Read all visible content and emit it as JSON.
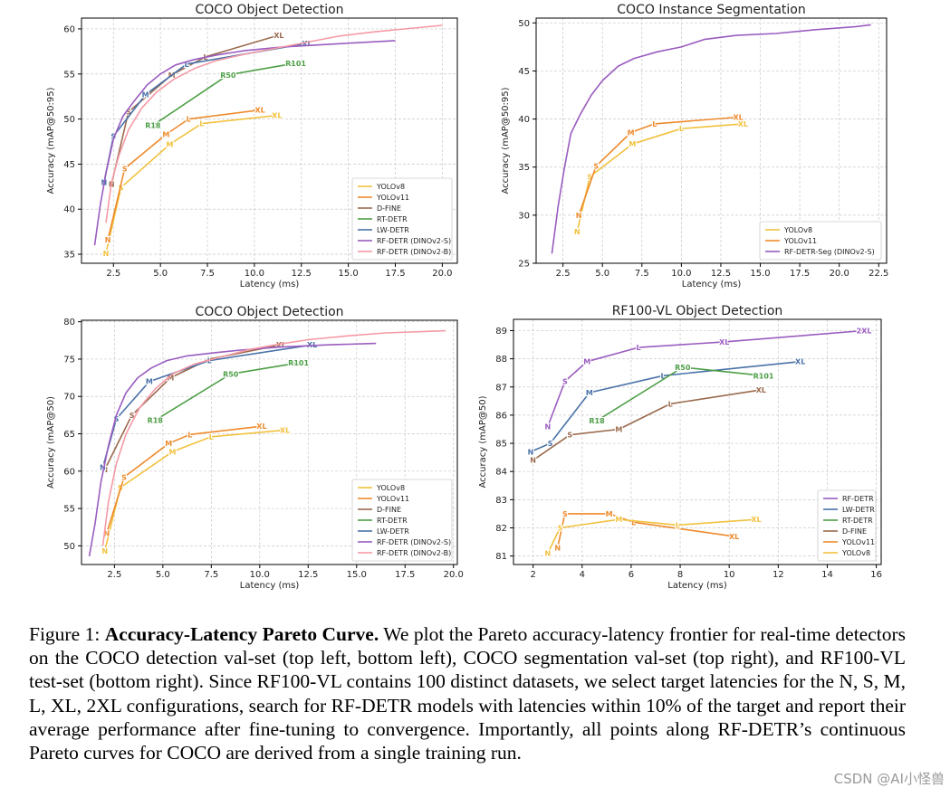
{
  "caption": {
    "label": "Figure 1:",
    "title": "Accuracy-Latency Pareto Curve.",
    "body": "We plot the Pareto accuracy-latency frontier for real-time detectors on the COCO detection val-set (top left, bottom left), COCO segmentation val-set (top right), and RF100-VL test-set (bottom right). Since RF100-VL contains 100 distinct datasets, we select target latencies for the N, S, M, L, XL, 2XL configurations, search for RF-DETR models with latencies within 10% of the target and report their average performance after fine-tuning to convergence. Importantly, all points along RF-DETR’s continuous Pareto curves for COCO are derived from a single training run."
  },
  "watermark": "CSDN @AI小怪兽",
  "colors": {
    "yolov8": "#f2c13e",
    "yolov11": "#ee8a2b",
    "dfine": "#9a6b4e",
    "rtdetr": "#4e9f47",
    "lwdetr": "#4a72a8",
    "rfdetr_s": "#9a5cc0",
    "rfdetr_b": "#f59aa6"
  },
  "chart_data": [
    {
      "type": "line",
      "title": "COCO Object Detection",
      "xlabel": "Latency (ms)",
      "ylabel": "Accuracy (mAP@50:95)",
      "xlim": [
        0.8,
        20.8
      ],
      "ylim": [
        34,
        61.2
      ],
      "xticks": [
        2.5,
        5.0,
        7.5,
        10.0,
        12.5,
        15.0,
        17.5,
        20.0
      ],
      "xtick_labels": [
        "2.5",
        "5.0",
        "7.5",
        "10.0",
        "12.5",
        "15.0",
        "17.5",
        "20.0"
      ],
      "yticks": [
        35,
        40,
        45,
        50,
        55,
        60
      ],
      "ytick_labels": [
        "35",
        "40",
        "45",
        "50",
        "55",
        "60"
      ],
      "grid": true,
      "legend_position": "bottom-right",
      "legend": [
        "YOLOv8",
        "YOLOv11",
        "D-FINE",
        "RT-DETR",
        "LW-DETR",
        "RF-DETR (DINOv2-S)",
        "RF-DETR (DINOv2-B)"
      ],
      "legend_colors": [
        "yolov8",
        "yolov11",
        "dfine",
        "rtdetr",
        "lwdetr",
        "rfdetr_s",
        "rfdetr_b"
      ],
      "series": [
        {
          "name": "YOLOv8",
          "color": "yolov8",
          "x": [
            2.1,
            2.9,
            5.5,
            7.2,
            11.2
          ],
          "y": [
            35.1,
            42.4,
            47.2,
            49.5,
            50.4
          ],
          "labels": [
            "N",
            "S",
            "M",
            "L",
            "XL"
          ]
        },
        {
          "name": "YOLOv11",
          "color": "yolov11",
          "x": [
            2.2,
            3.1,
            5.3,
            6.5,
            10.3
          ],
          "y": [
            36.6,
            44.5,
            48.3,
            50.0,
            51.0
          ],
          "labels": [
            "N",
            "S",
            "M",
            "L",
            "XL"
          ]
        },
        {
          "name": "D-FINE",
          "color": "dfine",
          "x": [
            2.4,
            3.3,
            5.6,
            7.4,
            11.3
          ],
          "y": [
            42.8,
            50.8,
            54.9,
            56.9,
            59.3
          ],
          "labels": [
            "N",
            "S",
            "M",
            "L",
            "XL"
          ]
        },
        {
          "name": "RT-DETR",
          "color": "rtdetr",
          "x": [
            4.6,
            8.6,
            12.2
          ],
          "y": [
            49.3,
            54.9,
            56.2
          ],
          "labels": [
            "R18",
            "R50",
            "R101"
          ]
        },
        {
          "name": "LW-DETR",
          "color": "lwdetr",
          "x": [
            2.0,
            2.5,
            4.2,
            6.4,
            12.8
          ],
          "y": [
            43.0,
            48.1,
            52.7,
            56.1,
            58.4
          ],
          "labels": [
            "N",
            "S",
            "M",
            "L",
            "XL"
          ]
        },
        {
          "name": "RF-DETR (DINOv2-S)",
          "color": "rfdetr_s",
          "x": [
            1.5,
            1.8,
            2.1,
            2.5,
            3.0,
            3.6,
            4.3,
            5.0,
            5.8,
            6.8,
            8.0,
            9.5,
            11.5,
            14.0,
            17.5
          ],
          "y": [
            36.0,
            40.5,
            44.0,
            47.8,
            50.3,
            52.0,
            53.8,
            55.0,
            56.0,
            56.6,
            57.1,
            57.6,
            58.0,
            58.3,
            58.7
          ],
          "labels": []
        },
        {
          "name": "RF-DETR (DINOv2-B)",
          "color": "rfdetr_b",
          "x": [
            2.1,
            2.4,
            2.8,
            3.3,
            4.0,
            4.8,
            5.7,
            6.8,
            8.0,
            9.5,
            11.0,
            12.5,
            14.5,
            16.5,
            18.5,
            20.0
          ],
          "y": [
            38.5,
            43.0,
            46.0,
            48.8,
            51.2,
            53.0,
            54.4,
            55.6,
            56.5,
            57.2,
            57.8,
            58.4,
            59.2,
            59.7,
            60.1,
            60.4
          ],
          "labels": []
        }
      ]
    },
    {
      "type": "line",
      "title": "COCO Instance Segmentation",
      "xlabel": "Latency (ms)",
      "ylabel": "Accuracy (mAP@50:95)",
      "xlim": [
        0.8,
        23.0
      ],
      "ylim": [
        25,
        50.5
      ],
      "xticks": [
        2.5,
        5.0,
        7.5,
        10.0,
        12.5,
        15.0,
        17.5,
        20.0,
        22.5
      ],
      "xtick_labels": [
        "2.5",
        "5.0",
        "7.5",
        "10.0",
        "12.5",
        "15.0",
        "17.5",
        "20.0",
        "22.5"
      ],
      "yticks": [
        25,
        30,
        35,
        40,
        45,
        50
      ],
      "ytick_labels": [
        "25",
        "30",
        "35",
        "40",
        "45",
        "50"
      ],
      "grid": true,
      "legend_position": "bottom-right",
      "legend": [
        "YOLOv8",
        "YOLOv11",
        "RF-DETR-Seg (DINOv2-S)"
      ],
      "legend_colors": [
        "yolov8",
        "yolov11",
        "rfdetr_s"
      ],
      "series": [
        {
          "name": "YOLOv8",
          "color": "yolov8",
          "x": [
            3.4,
            4.2,
            6.9,
            10.0,
            13.9
          ],
          "y": [
            28.3,
            34.0,
            37.4,
            39.0,
            39.5
          ],
          "labels": [
            "N",
            "S",
            "M",
            "L",
            "XL"
          ]
        },
        {
          "name": "YOLOv11",
          "color": "yolov11",
          "x": [
            3.5,
            4.6,
            6.8,
            8.3,
            13.6
          ],
          "y": [
            30.0,
            35.1,
            38.6,
            39.5,
            40.2
          ],
          "labels": [
            "N",
            "S",
            "M",
            "L",
            "XL"
          ]
        },
        {
          "name": "RF-DETR-Seg (DINOv2-S)",
          "color": "rfdetr_s",
          "x": [
            1.8,
            2.2,
            2.6,
            3.0,
            3.6,
            4.3,
            5.0,
            6.0,
            7.0,
            8.5,
            10.0,
            11.5,
            13.5,
            16.0,
            18.5,
            21.0,
            22.0
          ],
          "y": [
            26.0,
            31.0,
            35.0,
            38.5,
            40.5,
            42.5,
            44.0,
            45.5,
            46.3,
            47.0,
            47.5,
            48.3,
            48.7,
            48.9,
            49.3,
            49.6,
            49.8
          ],
          "labels": []
        }
      ]
    },
    {
      "type": "line",
      "title": "COCO Object Detection",
      "xlabel": "Latency (ms)",
      "ylabel": "Accuracy (mAP@50)",
      "xlim": [
        0.8,
        20.2
      ],
      "ylim": [
        47.5,
        80.2
      ],
      "xticks": [
        2.5,
        5.0,
        7.5,
        10.0,
        12.5,
        15.0,
        17.5,
        20.0
      ],
      "xtick_labels": [
        "2.5",
        "5.0",
        "7.5",
        "10.0",
        "12.5",
        "15.0",
        "17.5",
        "20.0"
      ],
      "yticks": [
        50,
        55,
        60,
        65,
        70,
        75,
        80
      ],
      "ytick_labels": [
        "50",
        "55",
        "60",
        "65",
        "70",
        "75",
        "80"
      ],
      "grid": true,
      "legend_position": "bottom-right",
      "legend": [
        "YOLOv8",
        "YOLOv11",
        "D-FINE",
        "RT-DETR",
        "LW-DETR",
        "RF-DETR (DINOv2-S)",
        "RF-DETR (DINOv2-B)"
      ],
      "legend_colors": [
        "yolov8",
        "yolov11",
        "dfine",
        "rtdetr",
        "lwdetr",
        "rfdetr_s",
        "rfdetr_b"
      ],
      "series": [
        {
          "name": "YOLOv8",
          "color": "yolov8",
          "x": [
            2.0,
            2.8,
            5.5,
            7.5,
            11.3
          ],
          "y": [
            49.3,
            57.8,
            62.6,
            64.6,
            65.5
          ],
          "labels": [
            "N",
            "S",
            "M",
            "L",
            "XL"
          ]
        },
        {
          "name": "YOLOv11",
          "color": "yolov11",
          "x": [
            2.1,
            3.0,
            5.3,
            6.4,
            10.1
          ],
          "y": [
            51.7,
            59.2,
            63.7,
            64.9,
            66.0
          ],
          "labels": [
            "N",
            "S",
            "M",
            "L",
            "XL"
          ]
        },
        {
          "name": "D-FINE",
          "color": "dfine",
          "x": [
            2.0,
            3.4,
            5.4,
            7.4,
            11.1
          ],
          "y": [
            60.2,
            67.5,
            72.5,
            75.0,
            76.9
          ],
          "labels": [
            "N",
            "S",
            "M",
            "L",
            "XL"
          ]
        },
        {
          "name": "RT-DETR",
          "color": "rtdetr",
          "x": [
            4.6,
            8.5,
            12.0
          ],
          "y": [
            66.8,
            73.0,
            74.5
          ],
          "labels": [
            "R18",
            "R50",
            "R101"
          ]
        },
        {
          "name": "LW-DETR",
          "color": "lwdetr",
          "x": [
            1.9,
            2.6,
            4.3,
            7.4,
            12.7
          ],
          "y": [
            60.5,
            67.0,
            72.0,
            74.8,
            76.9
          ],
          "labels": [
            "N",
            "S",
            "M",
            "L",
            "XL"
          ]
        },
        {
          "name": "RF-DETR (DINOv2-S)",
          "color": "rfdetr_s",
          "x": [
            1.2,
            1.5,
            1.8,
            2.2,
            2.6,
            3.1,
            3.7,
            4.4,
            5.2,
            6.2,
            7.5,
            9.0,
            11.0,
            13.5,
            16.0
          ],
          "y": [
            48.6,
            53.0,
            58.5,
            63.5,
            67.5,
            70.5,
            72.5,
            73.8,
            74.8,
            75.4,
            75.8,
            76.2,
            76.6,
            76.9,
            77.1
          ],
          "labels": []
        },
        {
          "name": "RF-DETR (DINOv2-B)",
          "color": "rfdetr_b",
          "x": [
            1.9,
            2.2,
            2.6,
            3.1,
            3.8,
            4.6,
            5.5,
            6.6,
            8.0,
            9.5,
            11.0,
            12.5,
            14.5,
            16.5,
            18.5,
            19.6
          ],
          "y": [
            50.0,
            56.0,
            61.0,
            65.0,
            68.5,
            71.0,
            73.0,
            74.3,
            75.3,
            76.3,
            77.0,
            77.6,
            78.1,
            78.5,
            78.7,
            78.8
          ],
          "labels": []
        }
      ]
    },
    {
      "type": "line",
      "title": "RF100-VL Object Detection",
      "xlabel": "Latency (ms)",
      "ylabel": "Accuracy (mAP@50)",
      "xlim": [
        1.2,
        16.2
      ],
      "ylim": [
        80.7,
        89.4
      ],
      "xticks": [
        2,
        4,
        6,
        8,
        10,
        12,
        14,
        16
      ],
      "xtick_labels": [
        "2",
        "4",
        "6",
        "8",
        "10",
        "12",
        "14",
        "16"
      ],
      "yticks": [
        81,
        82,
        83,
        84,
        85,
        86,
        87,
        88,
        89
      ],
      "ytick_labels": [
        "81",
        "82",
        "83",
        "84",
        "85",
        "86",
        "87",
        "88",
        "89"
      ],
      "grid": true,
      "legend_position": "bottom-right",
      "legend": [
        "RF-DETR",
        "LW-DETR",
        "RT-DETR",
        "D-FINE",
        "YOLOv11",
        "YOLOv8"
      ],
      "legend_colors": [
        "rfdetr_s",
        "lwdetr",
        "rtdetr",
        "dfine",
        "yolov11",
        "yolov8"
      ],
      "series": [
        {
          "name": "RF-DETR",
          "color": "rfdetr_s",
          "x": [
            2.6,
            3.3,
            4.2,
            6.3,
            9.8,
            15.5
          ],
          "y": [
            85.6,
            87.2,
            87.9,
            88.4,
            88.6,
            89.0
          ],
          "labels": [
            "N",
            "S",
            "M",
            "L",
            "XL",
            "2XL"
          ]
        },
        {
          "name": "LW-DETR",
          "color": "lwdetr",
          "x": [
            1.9,
            2.7,
            4.3,
            7.3,
            12.9
          ],
          "y": [
            84.7,
            85.0,
            86.8,
            87.4,
            87.9
          ],
          "labels": [
            "N",
            "S",
            "M",
            "L",
            "XL"
          ]
        },
        {
          "name": "RT-DETR",
          "color": "rtdetr",
          "x": [
            4.6,
            8.1,
            11.4
          ],
          "y": [
            85.8,
            87.7,
            87.4
          ],
          "labels": [
            "R18",
            "R50",
            "R101"
          ]
        },
        {
          "name": "D-FINE",
          "color": "dfine",
          "x": [
            2.0,
            3.5,
            5.5,
            7.6,
            11.3
          ],
          "y": [
            84.4,
            85.3,
            85.5,
            86.4,
            86.9
          ],
          "labels": [
            "N",
            "S",
            "M",
            "L",
            "XL"
          ]
        },
        {
          "name": "YOLOv11",
          "color": "yolov11",
          "x": [
            3.0,
            3.3,
            5.1,
            6.1,
            10.2
          ],
          "y": [
            81.3,
            82.5,
            82.5,
            82.2,
            81.7
          ],
          "labels": [
            "N",
            "S",
            "M",
            "L",
            "XL"
          ]
        },
        {
          "name": "YOLOv8",
          "color": "yolov8",
          "x": [
            2.6,
            3.1,
            5.5,
            7.9,
            11.1
          ],
          "y": [
            81.1,
            82.0,
            82.3,
            82.1,
            82.3
          ],
          "labels": [
            "N",
            "S",
            "M",
            "L",
            "XL"
          ]
        }
      ]
    }
  ]
}
